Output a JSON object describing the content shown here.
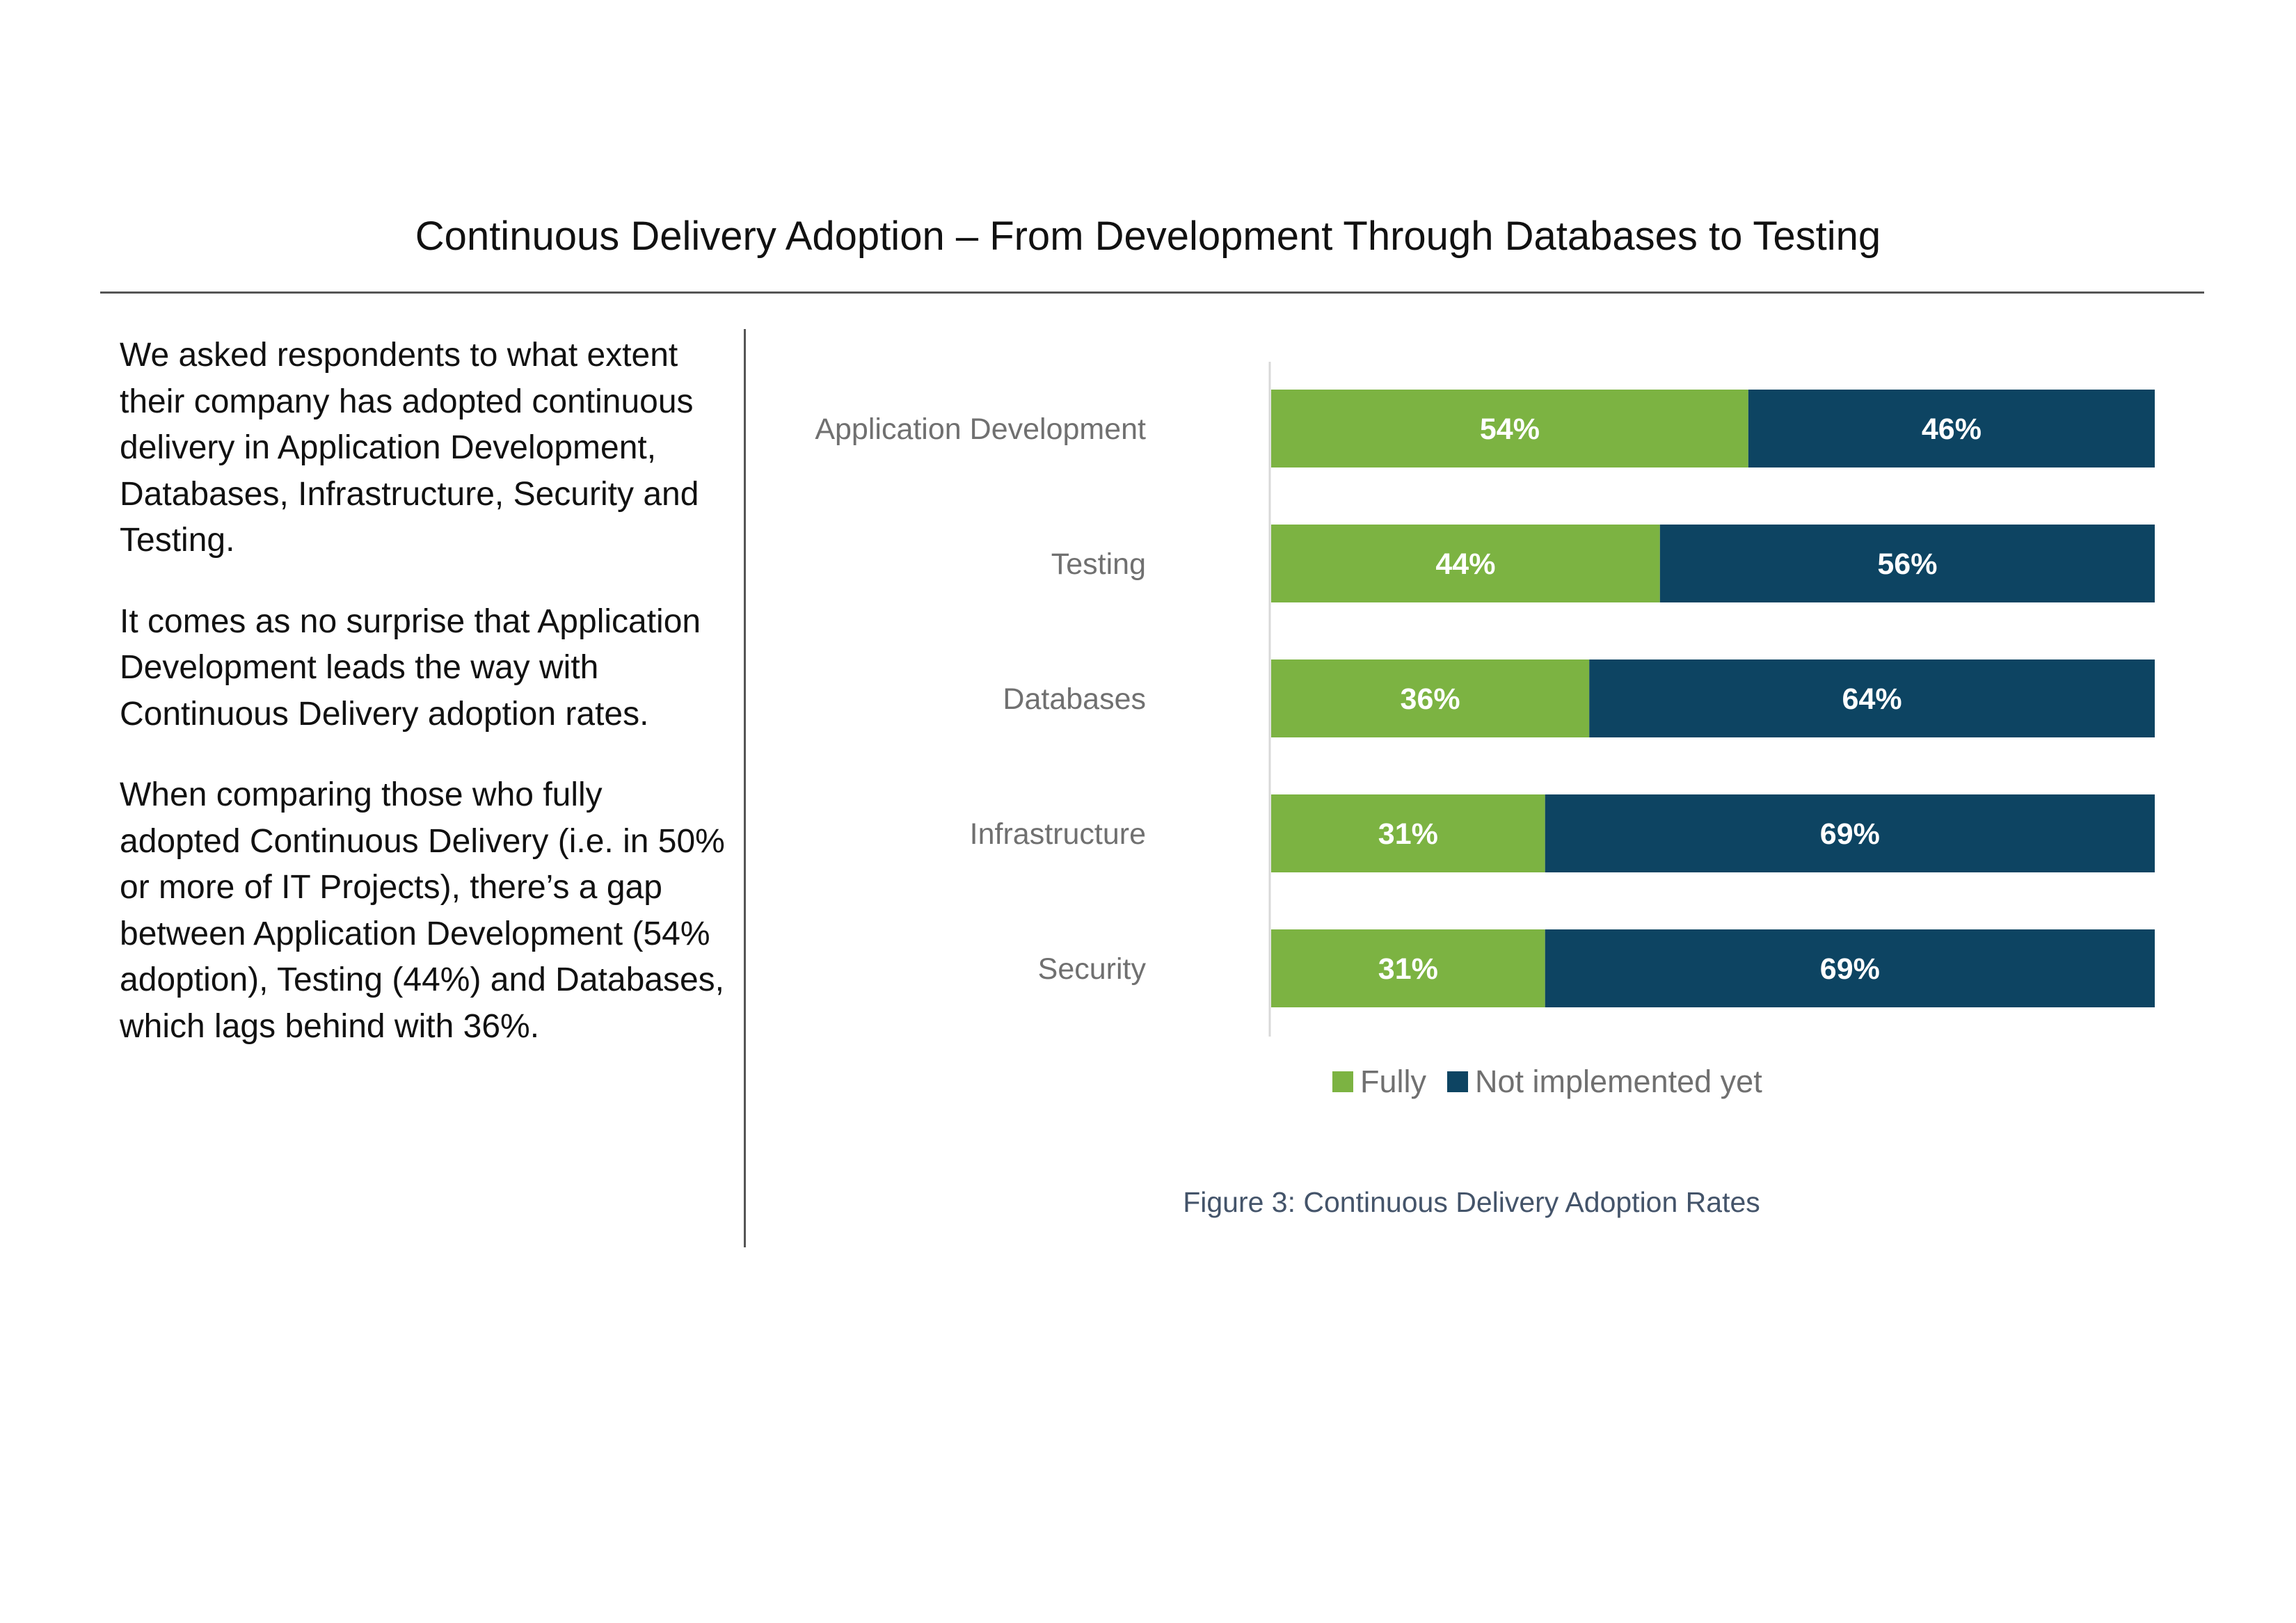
{
  "page_title": "Continuous Delivery Adoption – From Development Through Databases to Testing",
  "intro_paragraphs": [
    "We asked respondents to what extent their company has adopted continuous delivery in Application Development, Databases, Infrastructure, Security and Testing.",
    "It comes as no surprise that Application Development leads the way with Continuous Delivery adoption rates.",
    "When comparing those who fully adopted Continuous Delivery (i.e. in 50% or more of IT Projects), there’s a gap between Application Development (54% adoption), Testing (44%) and Databases, which lags behind with 36%."
  ],
  "caption": "Figure 3: Continuous Delivery Adoption Rates",
  "colors": {
    "fully": "#7cb342",
    "not_implemented": "#0d4462",
    "axis": "#d9d9d9"
  },
  "chart_data": {
    "type": "bar",
    "orientation": "horizontal",
    "stacked": true,
    "value_format": "percent",
    "categories": [
      "Application Development",
      "Testing",
      "Databases",
      "Infrastructure",
      "Security"
    ],
    "series": [
      {
        "name": "Fully",
        "values": [
          54,
          44,
          36,
          31,
          31
        ],
        "color": "#7cb342"
      },
      {
        "name": "Not implemented yet",
        "values": [
          46,
          56,
          64,
          69,
          69
        ],
        "color": "#0d4462"
      }
    ],
    "xlim": [
      0,
      100
    ],
    "legend_position": "bottom",
    "grid": false
  }
}
